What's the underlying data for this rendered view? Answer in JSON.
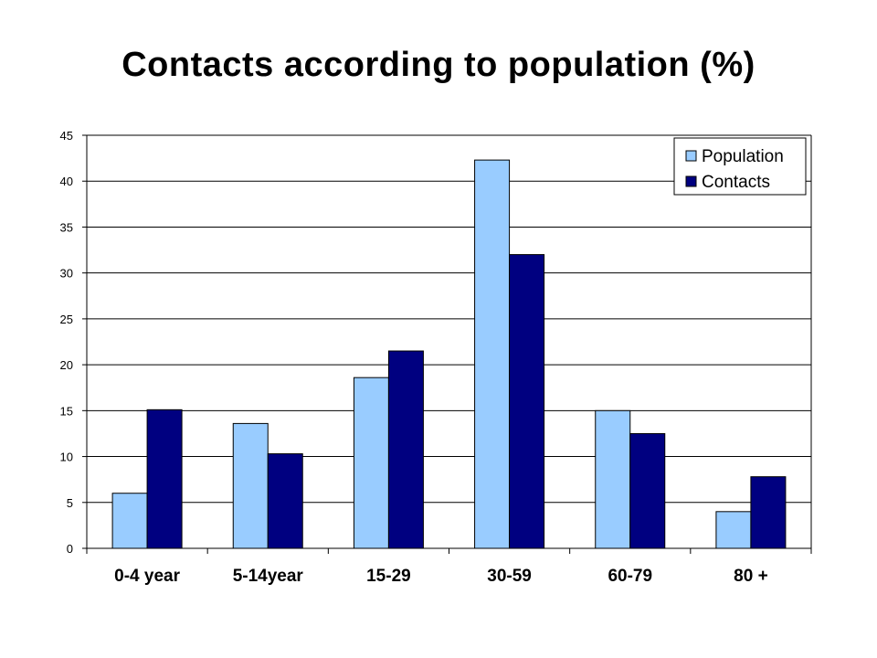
{
  "chart_data": {
    "type": "bar",
    "title": "Contacts according to population (%)",
    "xlabel": "",
    "ylabel": "",
    "categories": [
      "0-4 year",
      "5-14year",
      "15-29",
      "30-59",
      "60-79",
      "80 +"
    ],
    "series": [
      {
        "name": "Population",
        "values": [
          6.0,
          13.6,
          18.6,
          42.3,
          15.0,
          4.0
        ],
        "color": "#99CCFF"
      },
      {
        "name": "Contacts",
        "values": [
          15.1,
          10.3,
          21.5,
          32.0,
          12.5,
          7.8
        ],
        "color": "#000080"
      }
    ],
    "ylim": [
      0,
      45
    ],
    "yticks": [
      0,
      5,
      10,
      15,
      20,
      25,
      30,
      35,
      40,
      45
    ],
    "grid": true,
    "legend_position": "top-right"
  }
}
